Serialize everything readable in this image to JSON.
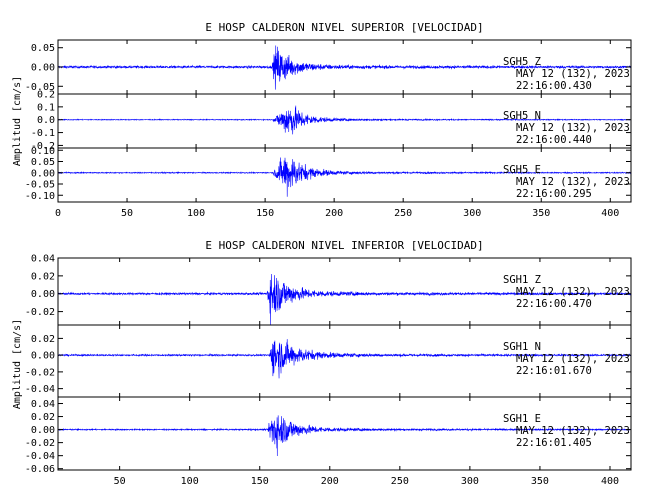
{
  "chart_data": [
    {
      "type": "line",
      "title": "E HOSP CALDERON NIVEL SUPERIOR [VELOCIDAD]",
      "ylabel": "Amplitud [cm/s]",
      "xlim": [
        0,
        415
      ],
      "xticks": [
        0,
        50,
        100,
        150,
        200,
        250,
        300,
        350,
        400
      ],
      "series": [
        {
          "ylim": [
            -0.07,
            0.07
          ],
          "yticks": [
            "0.05",
            "0.00",
            "-0.05"
          ],
          "yticks_values": [
            0.05,
            0.0,
            -0.05
          ],
          "station": "SGH5   Z",
          "date": "MAY 12 (132), 2023",
          "time": "22:16:00.430",
          "color": "#0000ff",
          "trace": {
            "onset": 155,
            "peak_time": 158,
            "noise": 0.004,
            "peak": 0.068,
            "decay": 11
          }
        },
        {
          "ylim": [
            -0.22,
            0.2
          ],
          "yticks": [
            "0.2",
            "0.1",
            "0.0",
            "-0.1",
            "-0.2"
          ],
          "yticks_values": [
            0.2,
            0.1,
            0.0,
            -0.1,
            -0.2
          ],
          "station": "SGH5   N",
          "date": "MAY 12 (132), 2023",
          "time": "22:16:00.440",
          "color": "#0000ff",
          "trace": {
            "onset": 156,
            "peak_time": 168,
            "noise": 0.004,
            "peak": 0.17,
            "decay": 10
          }
        },
        {
          "ylim": [
            -0.13,
            0.11
          ],
          "yticks": [
            "0.10",
            "0.05",
            "0.00",
            "-0.05",
            "-0.10"
          ],
          "yticks_values": [
            0.1,
            0.05,
            0.0,
            -0.05,
            -0.1
          ],
          "station": "SGH5   E",
          "date": "MAY 12 (132), 2023",
          "time": "22:16:00.295",
          "color": "#0000ff",
          "trace": {
            "onset": 156,
            "peak_time": 166,
            "noise": 0.003,
            "peak": 0.12,
            "decay": 11
          }
        }
      ]
    },
    {
      "type": "line",
      "title": "E HOSP CALDERON NIVEL INFERIOR [VELOCIDAD]",
      "ylabel": "Amplitud [cm/s]",
      "xlim": [
        6,
        415
      ],
      "xticks": [
        50,
        100,
        150,
        200,
        250,
        300,
        350,
        400
      ],
      "series": [
        {
          "ylim": [
            -0.035,
            0.04
          ],
          "yticks": [
            "0.04",
            "0.02",
            "0.00",
            "-0.02"
          ],
          "yticks_values": [
            0.04,
            0.02,
            0.0,
            -0.02
          ],
          "station": "SGH1   Z",
          "date": "MAY 12 (132), 2023",
          "time": "22:16:00.470",
          "color": "#0000ff",
          "trace": {
            "onset": 155,
            "peak_time": 158,
            "noise": 0.0015,
            "peak": 0.036,
            "decay": 12
          }
        },
        {
          "ylim": [
            -0.05,
            0.036
          ],
          "yticks": [
            "0.02",
            "0.00",
            "-0.02",
            "-0.04"
          ],
          "yticks_values": [
            0.02,
            0.0,
            -0.02,
            -0.04
          ],
          "station": "SGH1   N",
          "date": "MAY 12 (132), 2023",
          "time": "22:16:01.670",
          "color": "#0000ff",
          "trace": {
            "onset": 157,
            "peak_time": 160,
            "noise": 0.0012,
            "peak": 0.034,
            "decay": 14
          }
        },
        {
          "ylim": [
            -0.062,
            0.05
          ],
          "yticks": [
            "0.04",
            "0.02",
            "0.00",
            "-0.02",
            "-0.04",
            "-0.06"
          ],
          "yticks_values": [
            0.04,
            0.02,
            0.0,
            -0.02,
            -0.04,
            -0.06
          ],
          "station": "SGH1   E",
          "date": "MAY 12 (132), 2023",
          "time": "22:16:01.405",
          "color": "#0000ff",
          "trace": {
            "onset": 156,
            "peak_time": 160,
            "noise": 0.0012,
            "peak": 0.045,
            "decay": 12
          }
        }
      ]
    }
  ]
}
